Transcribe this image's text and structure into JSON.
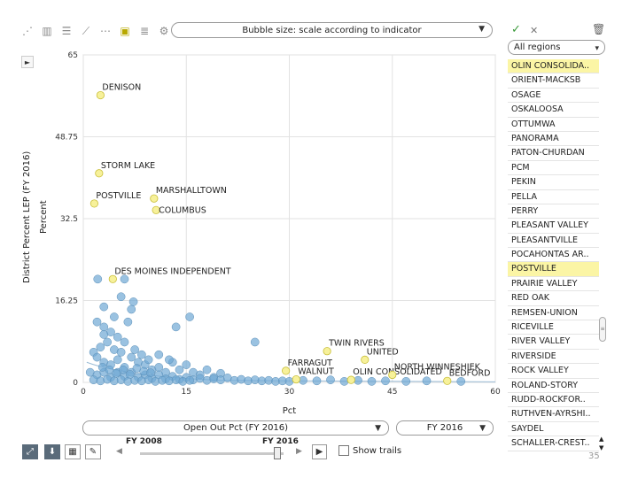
{
  "toolbar": {
    "icons": [
      "scatter-icon",
      "bar-chart-icon",
      "horizontal-bar-icon",
      "line-chart-icon",
      "dot-plot-icon",
      "bubble-chart-icon",
      "list-icon",
      "settings-icon"
    ],
    "bubble_size_label": "Bubble size: scale according to indicator"
  },
  "right_header": {
    "check": "✓",
    "close": "✕",
    "trash": "🗑"
  },
  "regions": {
    "selected": "All regions",
    "items": [
      {
        "label": "OLIN CONSOLIDA..",
        "highlighted": true
      },
      {
        "label": "ORIENT-MACKSB",
        "highlighted": false
      },
      {
        "label": "OSAGE",
        "highlighted": false
      },
      {
        "label": "OSKALOOSA",
        "highlighted": false
      },
      {
        "label": "OTTUMWA",
        "highlighted": false
      },
      {
        "label": "PANORAMA",
        "highlighted": false
      },
      {
        "label": "PATON-CHURDAN",
        "highlighted": false
      },
      {
        "label": "PCM",
        "highlighted": false
      },
      {
        "label": "PEKIN",
        "highlighted": false
      },
      {
        "label": "PELLA",
        "highlighted": false
      },
      {
        "label": "PERRY",
        "highlighted": false
      },
      {
        "label": "PLEASANT VALLEY",
        "highlighted": false
      },
      {
        "label": "PLEASANTVILLE",
        "highlighted": false
      },
      {
        "label": "POCAHONTAS AR..",
        "highlighted": false
      },
      {
        "label": "POSTVILLE",
        "highlighted": true
      },
      {
        "label": "PRAIRIE VALLEY",
        "highlighted": false
      },
      {
        "label": "RED OAK",
        "highlighted": false
      },
      {
        "label": "REMSEN-UNION",
        "highlighted": false
      },
      {
        "label": "RICEVILLE",
        "highlighted": false
      },
      {
        "label": "RIVER VALLEY",
        "highlighted": false
      },
      {
        "label": "RIVERSIDE",
        "highlighted": false
      },
      {
        "label": "ROCK VALLEY",
        "highlighted": false
      },
      {
        "label": "ROLAND-STORY",
        "highlighted": false
      },
      {
        "label": "RUDD-ROCKFOR..",
        "highlighted": false
      },
      {
        "label": "RUTHVEN-AYRSHI..",
        "highlighted": false
      },
      {
        "label": "SAYDEL",
        "highlighted": false
      },
      {
        "label": "SCHALLER-CREST..",
        "highlighted": false
      }
    ]
  },
  "bottom": {
    "x_indicator": "Open Out Pct  (FY 2016)",
    "year_select": "FY 2016",
    "year_start": "FY 2008",
    "year_end": "FY 2016",
    "show_trails": "Show trails",
    "page_number": "35"
  },
  "chart_data": {
    "type": "scatter",
    "ylabel_outer": "District Percent LEP (FY 2016)",
    "ylabel_inner": "Percent",
    "xlabel": "Pct",
    "xlim": [
      0,
      60
    ],
    "ylim": [
      0,
      65
    ],
    "xticks": [
      "0",
      "15",
      "30",
      "45",
      "60"
    ],
    "yticks": [
      "0",
      "16.25",
      "32.5",
      "48.75",
      "65"
    ],
    "colors": {
      "labeled": "#f7f19a",
      "default": "#6fa8d4",
      "labeled_stroke": "#c9bf3a"
    },
    "labeled_points": [
      {
        "name": "DENISON",
        "x": 2.5,
        "y": 57,
        "label_side": "up"
      },
      {
        "name": "STORM LAKE",
        "x": 2.3,
        "y": 41.5,
        "label_side": "up"
      },
      {
        "name": "POSTVILLE",
        "x": 1.6,
        "y": 35.5,
        "label_side": "up"
      },
      {
        "name": "MARSHALLTOWN",
        "x": 10.3,
        "y": 36.5,
        "label_side": "up"
      },
      {
        "name": "COLUMBUS",
        "x": 10.6,
        "y": 34.2,
        "label_side": "right"
      },
      {
        "name": "DES MOINES INDEPENDENT",
        "x": 4.3,
        "y": 20.5,
        "label_side": "up"
      },
      {
        "name": "TWIN RIVERS",
        "x": 35.5,
        "y": 6.2,
        "label_side": "up"
      },
      {
        "name": "UNITED",
        "x": 41,
        "y": 4.5,
        "label_side": "up"
      },
      {
        "name": "FARRAGUT",
        "x": 29.5,
        "y": 2.3,
        "label_side": "up"
      },
      {
        "name": "WALNUT",
        "x": 31,
        "y": 0.6,
        "label_side": "up"
      },
      {
        "name": "OLIN CONSOLIDATED",
        "x": 39,
        "y": 0.5,
        "label_side": "up"
      },
      {
        "name": "NORTH WINNESHIEK",
        "x": 45,
        "y": 1.5,
        "label_side": "up"
      },
      {
        "name": "BEDFORD",
        "x": 53,
        "y": 0.3,
        "label_side": "up"
      }
    ],
    "points": [
      [
        2.1,
        20.5
      ],
      [
        6,
        20.5
      ],
      [
        5.5,
        17
      ],
      [
        7.3,
        16
      ],
      [
        7,
        14.5
      ],
      [
        15.5,
        13
      ],
      [
        13.5,
        11
      ],
      [
        25,
        8
      ],
      [
        2,
        12
      ],
      [
        3,
        11
      ],
      [
        4,
        10
      ],
      [
        5,
        9
      ],
      [
        3.5,
        8
      ],
      [
        2.5,
        7
      ],
      [
        6,
        8
      ],
      [
        4.5,
        13
      ],
      [
        3,
        15
      ],
      [
        6.5,
        12
      ],
      [
        1.5,
        6
      ],
      [
        2,
        5
      ],
      [
        3,
        4
      ],
      [
        4,
        3.5
      ],
      [
        5,
        4.5
      ],
      [
        6,
        3
      ],
      [
        7,
        5
      ],
      [
        8,
        4
      ],
      [
        9,
        3.5
      ],
      [
        10,
        2.5
      ],
      [
        11,
        3
      ],
      [
        12,
        2
      ],
      [
        13,
        4
      ],
      [
        14,
        2.5
      ],
      [
        15,
        3.5
      ],
      [
        16,
        2
      ],
      [
        17,
        1.5
      ],
      [
        18,
        2.5
      ],
      [
        19,
        1
      ],
      [
        20,
        1.8
      ],
      [
        1,
        2
      ],
      [
        2,
        1.5
      ],
      [
        3,
        2
      ],
      [
        4,
        1
      ],
      [
        5,
        2
      ],
      [
        6,
        1.2
      ],
      [
        7,
        2
      ],
      [
        8,
        1
      ],
      [
        9,
        1.5
      ],
      [
        10,
        0.8
      ],
      [
        11,
        1.5
      ],
      [
        12,
        0.7
      ],
      [
        13,
        1.2
      ],
      [
        14,
        0.6
      ],
      [
        15,
        1
      ],
      [
        16,
        0.5
      ],
      [
        17,
        0.8
      ],
      [
        18,
        0.4
      ],
      [
        19,
        0.7
      ],
      [
        20,
        0.5
      ],
      [
        21,
        0.9
      ],
      [
        22,
        0.4
      ],
      [
        23,
        0.6
      ],
      [
        24,
        0.3
      ],
      [
        25,
        0.5
      ],
      [
        26,
        0.3
      ],
      [
        27,
        0.4
      ],
      [
        28,
        0.2
      ],
      [
        29,
        0.3
      ],
      [
        30,
        0.2
      ],
      [
        1.5,
        0.5
      ],
      [
        2.5,
        0.3
      ],
      [
        3.5,
        0.6
      ],
      [
        4.5,
        0.3
      ],
      [
        5.5,
        0.5
      ],
      [
        6.5,
        0.2
      ],
      [
        7.5,
        0.4
      ],
      [
        8.5,
        0.3
      ],
      [
        9.5,
        0.5
      ],
      [
        10.5,
        0.2
      ],
      [
        11.5,
        0.4
      ],
      [
        12.5,
        0.3
      ],
      [
        13.5,
        0.5
      ],
      [
        14.5,
        0.2
      ],
      [
        15.5,
        0.4
      ],
      [
        3,
        9.5
      ],
      [
        4.5,
        6.5
      ],
      [
        5.5,
        6
      ],
      [
        7.5,
        6.5
      ],
      [
        8.5,
        5.5
      ],
      [
        9.5,
        4.5
      ],
      [
        11,
        5.5
      ],
      [
        12.5,
        4.5
      ],
      [
        2.8,
        3
      ],
      [
        3.8,
        2.5
      ],
      [
        4.8,
        1.8
      ],
      [
        5.8,
        2.5
      ],
      [
        6.8,
        1.6
      ],
      [
        7.8,
        2.8
      ],
      [
        8.8,
        2.2
      ],
      [
        9.8,
        1.9
      ],
      [
        32,
        0.4
      ],
      [
        34,
        0.3
      ],
      [
        36,
        0.5
      ],
      [
        38,
        0.2
      ],
      [
        40,
        0.4
      ],
      [
        42,
        0.2
      ],
      [
        44,
        0.3
      ],
      [
        47,
        0.2
      ],
      [
        50,
        0.3
      ],
      [
        55,
        0.2
      ]
    ]
  }
}
